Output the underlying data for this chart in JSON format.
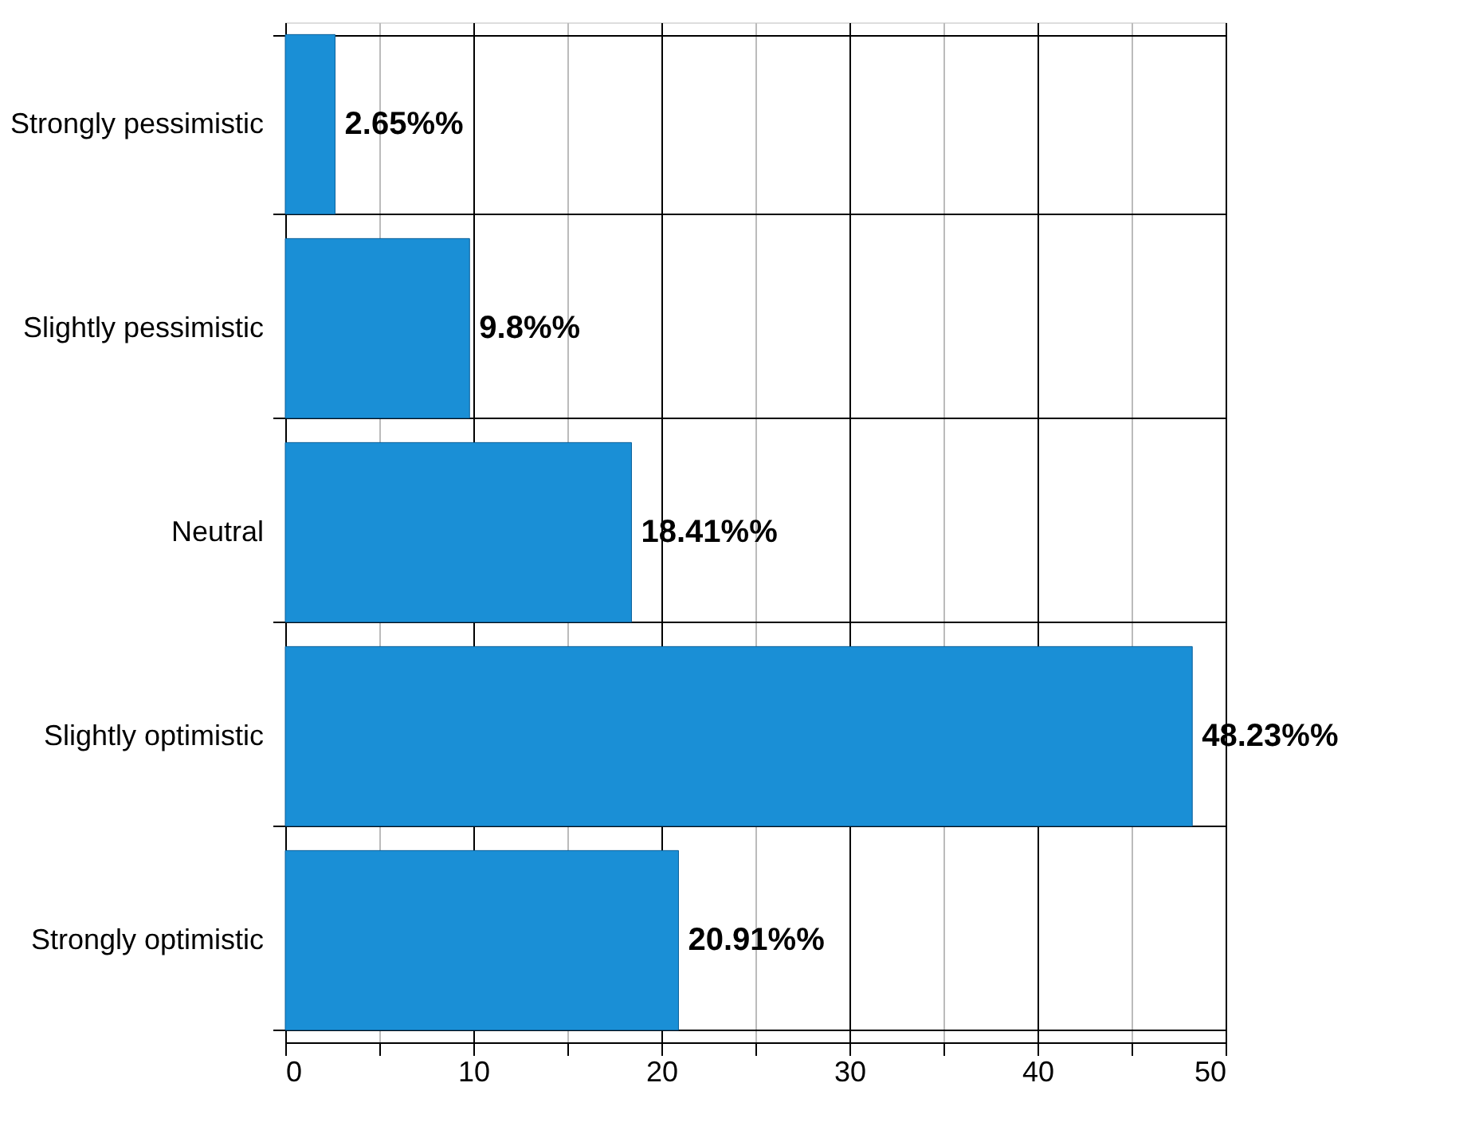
{
  "chart_data": {
    "type": "bar",
    "orientation": "horizontal",
    "categories": [
      "Strongly pessimistic",
      "Slightly pessimistic",
      "Neutral",
      "Slightly optimistic",
      "Strongly optimistic"
    ],
    "values": [
      2.65,
      9.8,
      18.41,
      48.23,
      20.91
    ],
    "value_labels": [
      "2.65%%",
      "9.8%%",
      "18.41%%",
      "48.23%%",
      "20.91%%"
    ],
    "color": "#1a8fd6",
    "xlim": [
      0,
      50
    ],
    "xticks": [
      0,
      {
        "value": 5,
        "label": null
      },
      10,
      {
        "value": 15,
        "label": null
      },
      20,
      {
        "value": 25,
        "label": null
      },
      30,
      {
        "value": 35,
        "label": null
      },
      40,
      {
        "value": 45,
        "label": null
      },
      50
    ],
    "grid": true
  }
}
